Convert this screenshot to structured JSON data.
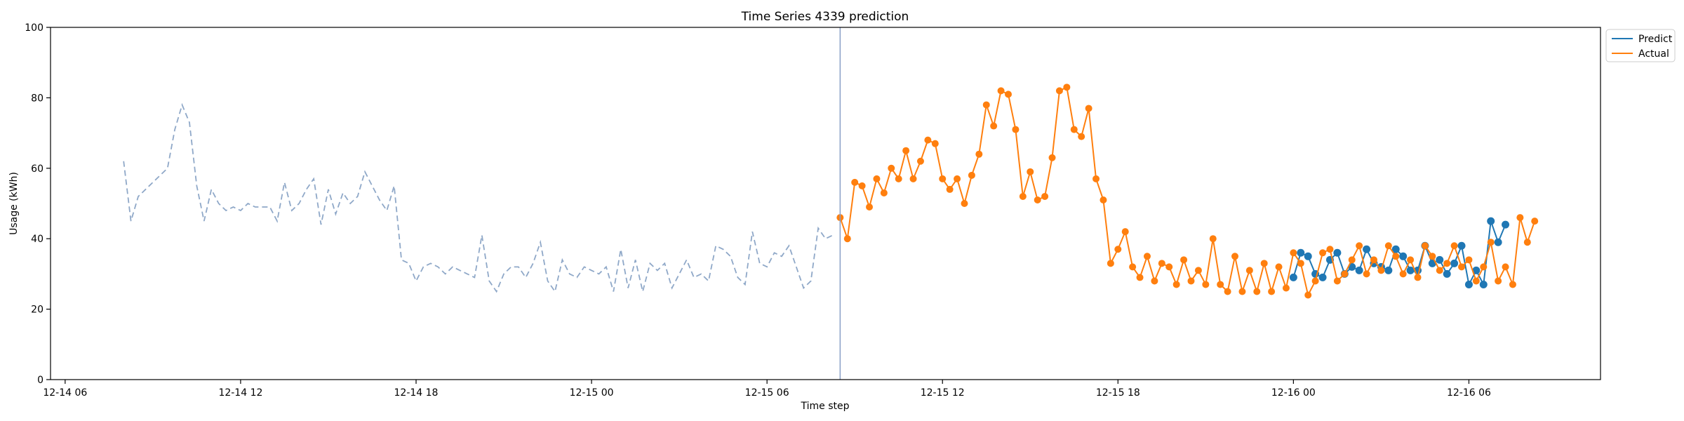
{
  "chart_data": {
    "type": "line",
    "title": "Time Series 4339 prediction",
    "xlabel": "Time step",
    "ylabel": "Usage (kWh)",
    "ylim": [
      0,
      100
    ],
    "yticks": [
      0,
      20,
      40,
      60,
      80,
      100
    ],
    "x_unit": "hours since 12-14 00:00",
    "xlim": [
      5.5,
      58.5
    ],
    "xticks": [
      {
        "x": 6,
        "label": "12-14 06"
      },
      {
        "x": 12,
        "label": "12-14 12"
      },
      {
        "x": 18,
        "label": "12-14 18"
      },
      {
        "x": 24,
        "label": "12-15 00"
      },
      {
        "x": 30,
        "label": "12-15 06"
      },
      {
        "x": 36,
        "label": "12-15 12"
      },
      {
        "x": 42,
        "label": "12-15 18"
      },
      {
        "x": 48,
        "label": "12-16 00"
      },
      {
        "x": 54,
        "label": "12-16 06"
      }
    ],
    "split_x": 32.5,
    "legend": {
      "placement": "top-right outside",
      "entries": [
        "Predict",
        "Actual"
      ]
    },
    "colors": {
      "predict": "#1f77b4",
      "actual": "#ff7f0e",
      "history": "#8fa8c8",
      "split": "#8a9fc7"
    },
    "history": {
      "name": "history",
      "style": "dashed",
      "start_x": 8.0,
      "step": 0.25,
      "values": [
        62,
        45,
        52,
        54,
        56,
        58,
        60,
        71,
        78,
        73,
        55,
        45,
        54,
        50,
        48,
        49,
        48,
        50,
        49,
        49,
        49,
        45,
        56,
        48,
        50,
        54,
        57,
        44,
        54,
        47,
        53,
        50,
        52,
        59,
        55,
        51,
        48,
        55,
        34,
        33,
        28,
        32,
        33,
        32,
        30,
        32,
        31,
        30,
        29,
        41,
        28,
        25,
        30,
        32,
        32,
        29,
        33,
        39,
        28,
        25,
        34,
        30,
        29,
        32,
        31,
        30,
        32,
        25,
        37,
        26,
        34,
        25,
        33,
        31,
        33,
        26,
        30,
        34,
        29,
        30,
        28,
        38,
        37,
        35,
        29,
        27,
        42,
        33,
        32,
        36,
        35,
        38,
        32,
        26,
        28,
        43,
        40,
        41
      ]
    },
    "series": [
      {
        "name": "Actual",
        "start_x": 32.5,
        "step": 0.25,
        "values": [
          46,
          40,
          56,
          55,
          49,
          57,
          53,
          60,
          57,
          65,
          57,
          62,
          68,
          67,
          57,
          54,
          57,
          50,
          58,
          64,
          78,
          72,
          82,
          81,
          71,
          52,
          59,
          51,
          52,
          63,
          82,
          83,
          71,
          69,
          77,
          57,
          51,
          33,
          37,
          42,
          32,
          29,
          35,
          28,
          33,
          32,
          27,
          34,
          28,
          31,
          27,
          40,
          27,
          25,
          35,
          25,
          31,
          25,
          33,
          25,
          32,
          26,
          36,
          33,
          24,
          28,
          36,
          37,
          28,
          30,
          34,
          38,
          30,
          34,
          31,
          38,
          35,
          30,
          34,
          29,
          38,
          35,
          31,
          33,
          38,
          32,
          34,
          28,
          32,
          39,
          28,
          32,
          27,
          46,
          39,
          45
        ]
      },
      {
        "name": "Predict",
        "start_x": 48.0,
        "step": 0.25,
        "values": [
          29,
          36,
          35,
          30,
          29,
          34,
          36,
          30,
          32,
          31,
          37,
          33,
          32,
          31,
          37,
          35,
          31,
          31,
          38,
          33,
          34,
          30,
          33,
          38,
          27,
          31,
          27,
          45,
          39,
          44
        ]
      }
    ]
  }
}
